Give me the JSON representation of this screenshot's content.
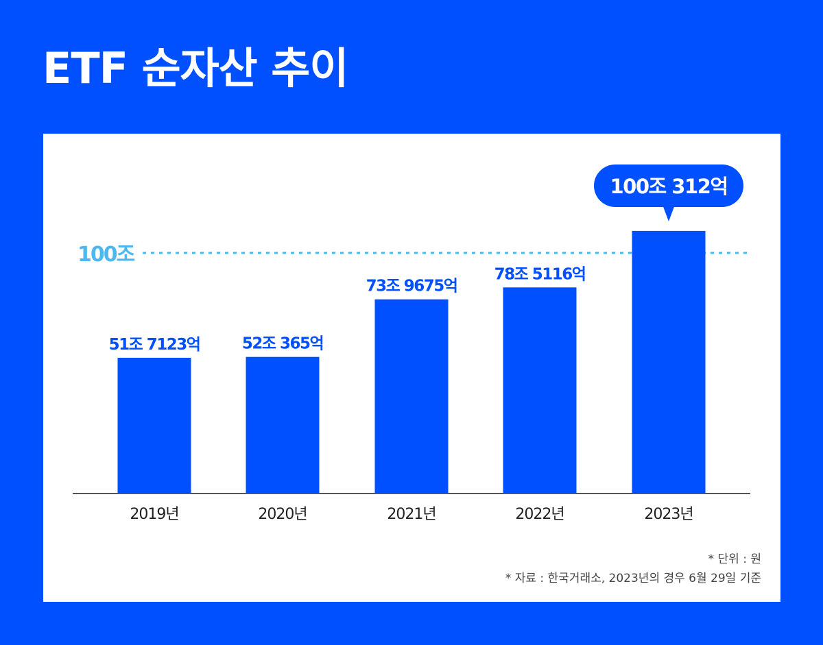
{
  "title": "ETF 순자산 추이",
  "chart_data": {
    "type": "bar",
    "title": "ETF 순자산 추이",
    "categories": [
      "2019년",
      "2020년",
      "2021년",
      "2022년",
      "2023년"
    ],
    "values": [
      51.7123,
      52.0365,
      73.9675,
      78.5116,
      100.0312
    ],
    "unit": "조 원",
    "data_labels": [
      "51조 7123억",
      "52조 365억",
      "73조 9675억",
      "78조 5116억",
      "100조 312억"
    ],
    "highlight_index": 4,
    "reference_line": {
      "value": 100,
      "label": "100조"
    },
    "xlabel": "",
    "ylabel": "",
    "ylim": [
      0,
      100
    ],
    "grid": false
  },
  "colors": {
    "background": "#0050ff",
    "bar": "#0050ff",
    "reference": "#4db8f0",
    "label": "#0050ff"
  },
  "notes": {
    "unit": "* 단위 : 원",
    "source": "* 자료 : 한국거래소, 2023년의 경우 6월 29일 기준"
  }
}
